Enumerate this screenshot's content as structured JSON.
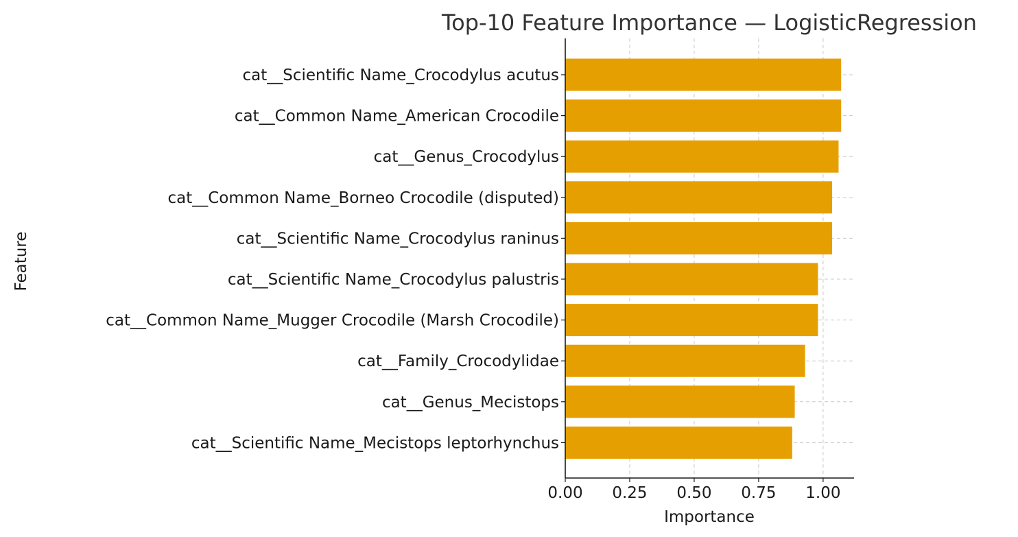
{
  "chart_data": {
    "type": "bar",
    "orientation": "horizontal",
    "title": "Top-10 Feature Importance — LogisticRegression",
    "xlabel": "Importance",
    "ylabel": "Feature",
    "xlim": [
      0,
      1.12
    ],
    "xticks": [
      0.0,
      0.25,
      0.5,
      0.75,
      1.0
    ],
    "xtick_labels": [
      "0.00",
      "0.25",
      "0.50",
      "0.75",
      "1.00"
    ],
    "grid": true,
    "bar_color": "#E69F00",
    "categories": [
      "cat__Scientific Name_Crocodylus acutus",
      "cat__Common Name_American Crocodile",
      "cat__Genus_Crocodylus",
      "cat__Common Name_Borneo Crocodile (disputed)",
      "cat__Scientific Name_Crocodylus raninus",
      "cat__Scientific Name_Crocodylus palustris",
      "cat__Common Name_Mugger Crocodile (Marsh Crocodile)",
      "cat__Family_Crocodylidae",
      "cat__Genus_Mecistops",
      "cat__Scientific Name_Mecistops leptorhynchus"
    ],
    "values": [
      1.07,
      1.07,
      1.06,
      1.035,
      1.035,
      0.98,
      0.98,
      0.93,
      0.89,
      0.88
    ]
  }
}
